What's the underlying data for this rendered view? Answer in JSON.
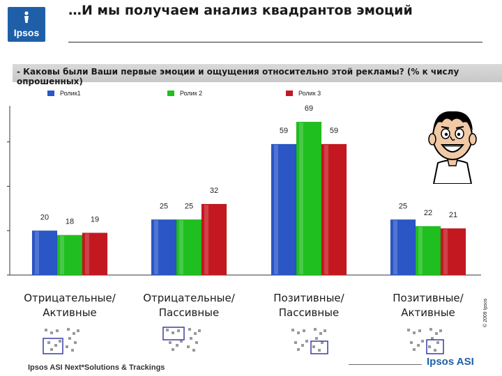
{
  "logo": {
    "text": "Ipsos"
  },
  "title": "…И мы получаем анализ квадрантов эмоций",
  "question": "- Каковы были Ваши первые эмоции и ощущения относительно этой рекламы? (% к числу опрошенных)",
  "footer": {
    "left": "Ipsos ASI Next*Solutions & Trackings",
    "brand": "Ipsos ASI"
  },
  "copyright": "© 2009 Ipsos",
  "colors": {
    "brand": "#1f5fa8"
  },
  "chart_data": {
    "type": "bar",
    "categories": [
      "Отрицательные/ Активные",
      "Отрицательные/ Пассивные",
      "Позитивные/ Пассивные",
      "Позитивные/ Активные"
    ],
    "category_lines": [
      [
        "Отрицательные/",
        "Активные"
      ],
      [
        "Отрицательные/",
        "Пассивные"
      ],
      [
        "Позитивные/",
        "Пассивные"
      ],
      [
        "Позитивные/",
        "Активные"
      ]
    ],
    "series": [
      {
        "name": "Ролик1",
        "values": [
          20,
          25,
          59,
          25
        ],
        "color": "#2a56c6"
      },
      {
        "name": "Ролик 2",
        "values": [
          18,
          25,
          69,
          22
        ],
        "color": "#1fbf1f"
      },
      {
        "name": "Ролик 3",
        "values": [
          19,
          32,
          59,
          21
        ],
        "color": "#c41820"
      }
    ],
    "ylim": [
      0,
      80
    ],
    "grid": false,
    "legend": "top"
  }
}
